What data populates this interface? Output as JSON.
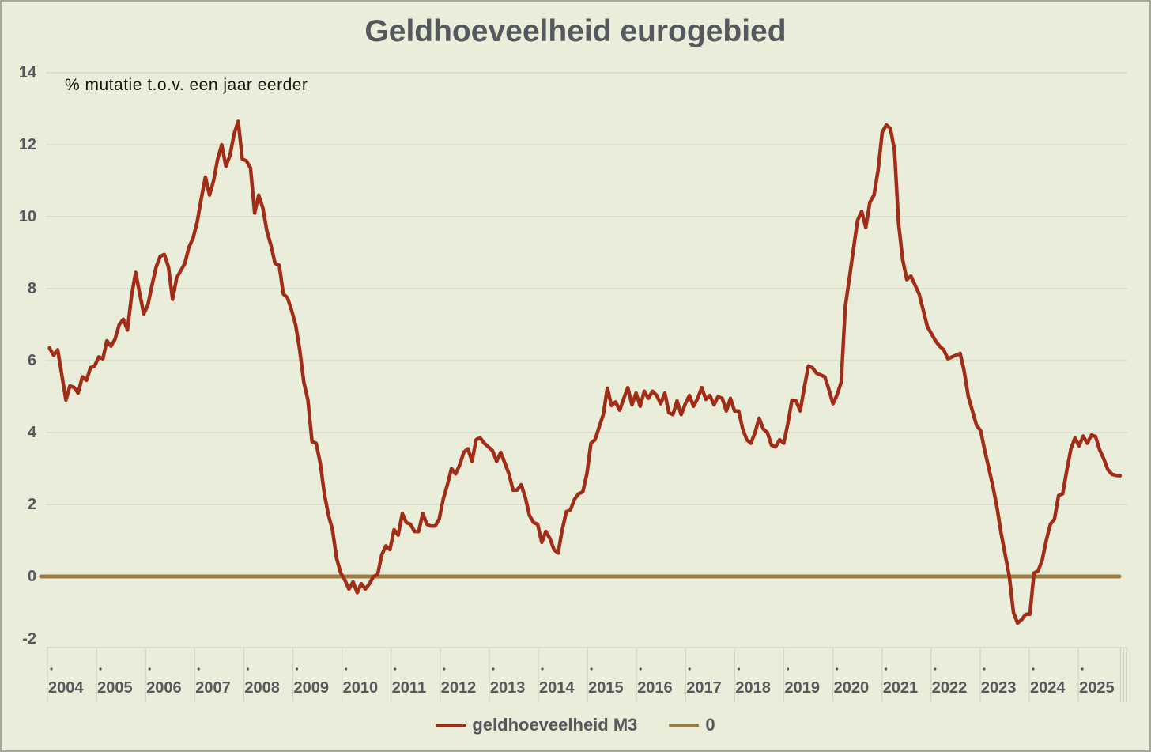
{
  "title": "Geldhoeveelheid eurogebied",
  "subtitle": "% mutatie t.o.v. een jaar eerder",
  "legend": {
    "items": [
      {
        "label": "geldhoeveelheid M3",
        "color": "#a12d17"
      },
      {
        "label": "0",
        "color": "#9c7c40"
      }
    ]
  },
  "colors": {
    "background": "#e9edd9",
    "frame_border": "#a5a89b",
    "gridline": "#d6d9c8",
    "axis_strip_line": "#d2d5c4",
    "tick_dot": "#55585c",
    "text": "#55585c",
    "m3_line": "#a12d17",
    "zero_line": "#9c7c40"
  },
  "chart_data": {
    "type": "line",
    "title": "Geldhoeveelheid eurogebied",
    "annotation": "% mutatie t.o.v. een jaar eerder",
    "ylabel": "",
    "xlabel": "",
    "ylim": [
      -2,
      14
    ],
    "ytick_interval": 2,
    "yticks": [
      14,
      12,
      10,
      8,
      6,
      4,
      2,
      0,
      -2
    ],
    "grid": "horizontal",
    "legend_position": "bottom",
    "x_start": "2004-01",
    "x_end": "2025-10",
    "frequency": "monthly",
    "x_tick_labels": [
      "2004",
      "2005",
      "2006",
      "2007",
      "2008",
      "2009",
      "2010",
      "2011",
      "2012",
      "2013",
      "2014",
      "2015",
      "2016",
      "2017",
      "2018",
      "2019",
      "2020",
      "2021",
      "2022",
      "2023",
      "2024",
      "2025"
    ],
    "series": [
      {
        "name": "geldhoeveelheid M3",
        "color": "#a12d17",
        "unit": "%",
        "values": [
          6.35,
          6.15,
          6.3,
          5.6,
          4.9,
          5.3,
          5.25,
          5.1,
          5.55,
          5.45,
          5.8,
          5.85,
          6.1,
          6.05,
          6.55,
          6.4,
          6.6,
          7.0,
          7.15,
          6.85,
          7.8,
          8.45,
          7.85,
          7.3,
          7.55,
          8.1,
          8.6,
          8.9,
          8.95,
          8.6,
          7.7,
          8.3,
          8.5,
          8.7,
          9.15,
          9.4,
          9.85,
          10.5,
          11.1,
          10.6,
          11.0,
          11.6,
          12.0,
          11.4,
          11.7,
          12.3,
          12.65,
          11.6,
          11.55,
          11.35,
          10.1,
          10.6,
          10.25,
          9.6,
          9.2,
          8.7,
          8.65,
          7.85,
          7.75,
          7.4,
          7.0,
          6.3,
          5.4,
          4.9,
          3.75,
          3.7,
          3.15,
          2.3,
          1.7,
          1.3,
          0.5,
          0.1,
          -0.1,
          -0.35,
          -0.15,
          -0.45,
          -0.2,
          -0.35,
          -0.2,
          0.0,
          0.05,
          0.6,
          0.85,
          0.75,
          1.3,
          1.15,
          1.75,
          1.5,
          1.45,
          1.25,
          1.25,
          1.75,
          1.45,
          1.4,
          1.4,
          1.6,
          2.15,
          2.55,
          3.0,
          2.85,
          3.1,
          3.45,
          3.55,
          3.2,
          3.8,
          3.85,
          3.7,
          3.6,
          3.5,
          3.2,
          3.45,
          3.15,
          2.85,
          2.4,
          2.4,
          2.55,
          2.2,
          1.7,
          1.5,
          1.45,
          0.95,
          1.25,
          1.05,
          0.75,
          0.65,
          1.3,
          1.8,
          1.85,
          2.15,
          2.3,
          2.35,
          2.85,
          3.7,
          3.8,
          4.15,
          4.5,
          5.23,
          4.75,
          4.85,
          4.62,
          4.95,
          5.25,
          4.77,
          5.1,
          4.73,
          5.15,
          4.95,
          5.15,
          5.03,
          4.8,
          5.1,
          4.55,
          4.5,
          4.88,
          4.5,
          4.8,
          5.03,
          4.73,
          4.95,
          5.25,
          4.92,
          5.03,
          4.77,
          5.0,
          4.95,
          4.6,
          4.95,
          4.6,
          4.6,
          4.1,
          3.8,
          3.7,
          4.0,
          4.4,
          4.1,
          4.0,
          3.65,
          3.6,
          3.8,
          3.7,
          4.25,
          4.9,
          4.88,
          4.6,
          5.25,
          5.85,
          5.8,
          5.65,
          5.6,
          5.55,
          5.2,
          4.8,
          5.05,
          5.4,
          7.5,
          8.3,
          9.1,
          9.9,
          10.15,
          9.7,
          10.4,
          10.6,
          11.3,
          12.35,
          12.55,
          12.45,
          11.85,
          9.8,
          8.8,
          8.25,
          8.35,
          8.1,
          7.85,
          7.4,
          6.95,
          6.75,
          6.55,
          6.4,
          6.3,
          6.05,
          6.1,
          6.15,
          6.2,
          5.7,
          5.0,
          4.6,
          4.2,
          4.05,
          3.5,
          3.0,
          2.5,
          1.9,
          1.2,
          0.6,
          0.0,
          -1.0,
          -1.3,
          -1.2,
          -1.05,
          -1.05,
          0.1,
          0.15,
          0.45,
          1.0,
          1.45,
          1.6,
          2.25,
          2.3,
          2.95,
          3.55,
          3.85,
          3.63,
          3.9,
          3.7,
          3.93,
          3.89,
          3.52,
          3.27,
          2.97,
          2.84,
          2.81,
          2.8
        ]
      },
      {
        "name": "0",
        "color": "#9c7c40",
        "role": "baseline",
        "value": 0
      }
    ]
  }
}
